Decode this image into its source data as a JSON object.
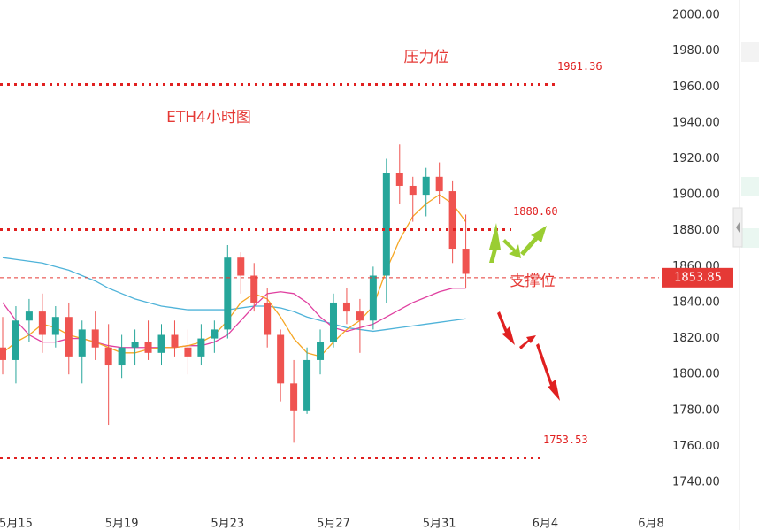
{
  "chart_data": {
    "type": "candlestick",
    "x": [
      0,
      1,
      2,
      3,
      4,
      5,
      6,
      7,
      8,
      9,
      10,
      11,
      12,
      13,
      14,
      15,
      16,
      17,
      18,
      19,
      20,
      21,
      22,
      23,
      24,
      25,
      26,
      27,
      28,
      29,
      30,
      31,
      32,
      33,
      34,
      35
    ],
    "open": [
      1815,
      1808,
      1830,
      1835,
      1822,
      1832,
      1810,
      1825,
      1815,
      1805,
      1815,
      1818,
      1812,
      1822,
      1815,
      1810,
      1820,
      1825,
      1865,
      1855,
      1840,
      1822,
      1795,
      1780,
      1808,
      1818,
      1840,
      1835,
      1830,
      1855,
      1912,
      1905,
      1900,
      1910,
      1902,
      1870
    ],
    "high": [
      1832,
      1838,
      1842,
      1845,
      1838,
      1840,
      1830,
      1835,
      1828,
      1822,
      1825,
      1830,
      1828,
      1830,
      1825,
      1828,
      1830,
      1872,
      1868,
      1862,
      1848,
      1825,
      1808,
      1815,
      1825,
      1845,
      1848,
      1842,
      1860,
      1920,
      1928,
      1910,
      1915,
      1918,
      1908,
      1889
    ],
    "low": [
      1800,
      1795,
      1818,
      1812,
      1815,
      1800,
      1795,
      1808,
      1772,
      1798,
      1805,
      1808,
      1805,
      1810,
      1800,
      1805,
      1812,
      1820,
      1845,
      1835,
      1815,
      1785,
      1762,
      1778,
      1800,
      1815,
      1828,
      1812,
      1825,
      1840,
      1895,
      1885,
      1888,
      1895,
      1862,
      1848
    ],
    "close": [
      1808,
      1830,
      1835,
      1822,
      1832,
      1810,
      1825,
      1815,
      1805,
      1815,
      1818,
      1812,
      1822,
      1815,
      1810,
      1820,
      1825,
      1865,
      1855,
      1840,
      1822,
      1795,
      1780,
      1808,
      1818,
      1840,
      1835,
      1830,
      1855,
      1912,
      1905,
      1900,
      1910,
      1902,
      1870,
      1856
    ],
    "up_color": "#26a69a",
    "down_color": "#ef5350",
    "lines": [
      {
        "color": "#4fb3d9",
        "values": [
          1865,
          1864,
          1863,
          1862,
          1860,
          1858,
          1855,
          1852,
          1848,
          1845,
          1842,
          1840,
          1838,
          1837,
          1836,
          1836,
          1836,
          1836,
          1837,
          1838,
          1838,
          1837,
          1835,
          1832,
          1830,
          1828,
          1826,
          1825,
          1824,
          1825,
          1826,
          1827,
          1828,
          1829,
          1830,
          1831
        ]
      },
      {
        "color": "#e040a0",
        "values": [
          1840,
          1830,
          1822,
          1818,
          1818,
          1820,
          1820,
          1818,
          1816,
          1815,
          1815,
          1815,
          1815,
          1815,
          1816,
          1816,
          1818,
          1822,
          1830,
          1838,
          1845,
          1846,
          1845,
          1840,
          1832,
          1826,
          1824,
          1826,
          1828,
          1832,
          1836,
          1840,
          1843,
          1846,
          1848,
          1848
        ]
      },
      {
        "color": "#f5a623",
        "values": [
          1812,
          1818,
          1822,
          1828,
          1826,
          1822,
          1820,
          1818,
          1815,
          1812,
          1812,
          1814,
          1815,
          1815,
          1816,
          1818,
          1822,
          1830,
          1840,
          1845,
          1842,
          1832,
          1820,
          1812,
          1810,
          1818,
          1825,
          1830,
          1838,
          1858,
          1875,
          1888,
          1895,
          1900,
          1895,
          1885
        ]
      }
    ],
    "xlim": [
      -0.2,
      49.6
    ],
    "xticks": [
      {
        "value": 1,
        "label": "5月15"
      },
      {
        "value": 9,
        "label": "5月19"
      },
      {
        "value": 17,
        "label": "5月23"
      },
      {
        "value": 25,
        "label": "5月27"
      },
      {
        "value": 33,
        "label": "5月31"
      },
      {
        "value": 41,
        "label": "6月4"
      },
      {
        "value": 49,
        "label": "6月8"
      }
    ],
    "ylim": [
      1727.7,
      2008.4
    ],
    "yticks": [
      {
        "value": 1740,
        "label": "1740.00"
      },
      {
        "value": 1760,
        "label": "1760.00"
      },
      {
        "value": 1780,
        "label": "1780.00"
      },
      {
        "value": 1800,
        "label": "1800.00"
      },
      {
        "value": 1820,
        "label": "1820.00"
      },
      {
        "value": 1840,
        "label": "1840.00"
      },
      {
        "value": 1860,
        "label": "1860.00"
      },
      {
        "value": 1880,
        "label": "1880.00"
      },
      {
        "value": 1900,
        "label": "1900.00"
      },
      {
        "value": 1920,
        "label": "1920.00"
      },
      {
        "value": 1940,
        "label": "1940.00"
      },
      {
        "value": 1960,
        "label": "1960.00"
      },
      {
        "value": 1980,
        "label": "1980.00"
      },
      {
        "value": 2000,
        "label": "2000.00"
      }
    ],
    "levels": [
      {
        "value": 1961.36,
        "label": "1961.36"
      },
      {
        "value": 1880.6,
        "label": "1880.60"
      },
      {
        "value": 1753.53,
        "label": "1753.53"
      }
    ],
    "last_price": {
      "value": 1853.85,
      "label": "1853.85"
    },
    "annotations": [
      "压力位",
      "ETH4小时图",
      "支撑位"
    ]
  }
}
